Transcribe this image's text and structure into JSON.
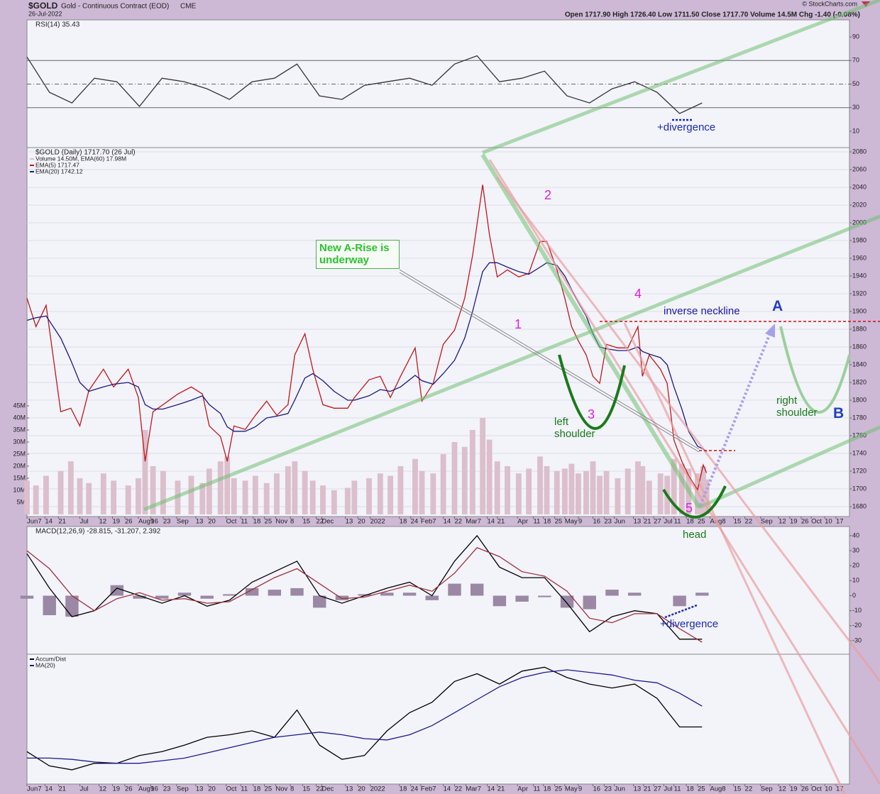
{
  "header": {
    "symbol": "$GOLD",
    "name": "Gold - Continuous Contract (EOD)",
    "exchange": "CME",
    "date": "26-Jul-2022",
    "quote": "Open 1717.90 High 1726.40 Low 1711.50 Close 1717.70 Volume 14.5M Chg -1.40 (-0.08%)",
    "copyright": "© StockCharts.com"
  },
  "chart_data": [
    {
      "type": "line",
      "title": "RSI(14) 35.43",
      "xlim": [
        0,
        73.1
      ],
      "ylim": [
        -3.9,
        104.5
      ],
      "yticks": [
        10,
        30,
        50,
        70,
        90
      ],
      "hlines": [
        30,
        50,
        70
      ],
      "x": [
        0,
        2,
        4,
        6,
        8,
        10,
        12,
        14,
        16,
        18,
        20,
        22,
        24,
        26,
        28,
        30,
        32,
        34,
        36,
        38,
        40,
        42,
        44,
        46,
        48,
        50,
        52,
        54,
        56,
        58,
        60
      ],
      "series": [
        {
          "color": "#333333",
          "values": [
            73,
            43,
            34,
            55,
            52,
            31,
            55,
            52,
            46,
            37,
            52,
            55,
            67,
            40,
            37,
            49,
            52,
            55,
            49,
            67,
            74,
            52,
            55,
            61,
            40,
            34,
            46,
            52,
            43,
            25,
            34
          ]
        }
      ],
      "annotations": [
        "+divergence"
      ]
    },
    {
      "type": "line",
      "title": "$GOLD (Daily) 1717.70 (26 Jul)",
      "xlim": [
        0,
        73.1
      ],
      "ylim": [
        1668.8,
        2084.8
      ],
      "grid": true,
      "yticks": [
        1680,
        1700,
        1720,
        1740,
        1760,
        1780,
        1800,
        1820,
        1840,
        1860,
        1880,
        1900,
        1920,
        1940,
        1960,
        1980,
        2000,
        2020,
        2040,
        2060,
        2080
      ],
      "y2lim": [
        -0.9,
        152.1
      ],
      "y2ticks": [
        {
          "value": 5,
          "label": "5M"
        },
        {
          "value": 10,
          "label": "10M"
        },
        {
          "value": 15,
          "label": "15M"
        },
        {
          "value": 20,
          "label": "20M"
        },
        {
          "value": 25,
          "label": "25M"
        },
        {
          "value": 30,
          "label": "30M"
        },
        {
          "value": 35,
          "label": "35M"
        },
        {
          "value": 40,
          "label": "40M"
        },
        {
          "value": 45,
          "label": "45M"
        }
      ],
      "xticks": [
        {
          "value": 0,
          "label": "Jun7"
        },
        {
          "value": 1.6,
          "label": "14"
        },
        {
          "value": 2.8,
          "label": "21"
        },
        {
          "value": 4.7,
          "label": "Jul"
        },
        {
          "value": 6.4,
          "label": "12"
        },
        {
          "value": 7.6,
          "label": "19"
        },
        {
          "value": 8.7,
          "label": "26"
        },
        {
          "value": 9.9,
          "label": "Aug9"
        },
        {
          "value": 11.0,
          "label": "16"
        },
        {
          "value": 12.1,
          "label": "23"
        },
        {
          "value": 13.3,
          "label": "Sep"
        },
        {
          "value": 15.0,
          "label": "13"
        },
        {
          "value": 16.1,
          "label": "20"
        },
        {
          "value": 17.7,
          "label": "Oct"
        },
        {
          "value": 19.0,
          "label": "11"
        },
        {
          "value": 20.1,
          "label": "18"
        },
        {
          "value": 21.1,
          "label": "25"
        },
        {
          "value": 22.1,
          "label": "Nov"
        },
        {
          "value": 23.4,
          "label": "8"
        },
        {
          "value": 24.5,
          "label": "15"
        },
        {
          "value": 25.7,
          "label": "22"
        },
        {
          "value": 26.2,
          "label": "Dec"
        },
        {
          "value": 28.3,
          "label": "13"
        },
        {
          "value": 29.4,
          "label": "20"
        },
        {
          "value": 30.5,
          "label": "2022"
        },
        {
          "value": 33.1,
          "label": "18"
        },
        {
          "value": 34.1,
          "label": "24"
        },
        {
          "value": 35.0,
          "label": "Feb7"
        },
        {
          "value": 37.0,
          "label": "14"
        },
        {
          "value": 38.0,
          "label": "22"
        },
        {
          "value": 39.0,
          "label": "Mar7"
        },
        {
          "value": 40.9,
          "label": "14"
        },
        {
          "value": 41.8,
          "label": "21"
        },
        {
          "value": 43.6,
          "label": "Apr"
        },
        {
          "value": 45.0,
          "label": "11"
        },
        {
          "value": 45.9,
          "label": "18"
        },
        {
          "value": 46.9,
          "label": "25"
        },
        {
          "value": 47.8,
          "label": "May"
        },
        {
          "value": 49.0,
          "label": "9"
        },
        {
          "value": 50.3,
          "label": "16"
        },
        {
          "value": 51.3,
          "label": "23"
        },
        {
          "value": 52.2,
          "label": "Jun"
        },
        {
          "value": 53.9,
          "label": "13"
        },
        {
          "value": 54.8,
          "label": "21"
        },
        {
          "value": 55.7,
          "label": "27"
        },
        {
          "value": 56.6,
          "label": "Jul"
        },
        {
          "value": 57.5,
          "label": "11"
        },
        {
          "value": 58.6,
          "label": "18"
        },
        {
          "value": 59.6,
          "label": "25"
        },
        {
          "value": 60.7,
          "label": "Aug8"
        },
        {
          "value": 62.8,
          "label": "15"
        },
        {
          "value": 63.8,
          "label": "22"
        },
        {
          "value": 65.2,
          "label": "Sep"
        },
        {
          "value": 66.8,
          "label": "12"
        },
        {
          "value": 67.8,
          "label": "19"
        },
        {
          "value": 68.8,
          "label": "26"
        },
        {
          "value": 69.7,
          "label": "Oct"
        },
        {
          "value": 70.9,
          "label": "10"
        },
        {
          "value": 71.9,
          "label": "17"
        }
      ],
      "x": [
        0,
        0.8,
        1.7,
        3.0,
        3.9,
        4.7,
        5.5,
        6.8,
        7.7,
        9.0,
        9.9,
        10.5,
        11.2,
        12.1,
        13.4,
        14.6,
        15.6,
        16.2,
        17.2,
        17.8,
        18.4,
        19.4,
        20.3,
        21.3,
        22.2,
        23.2,
        23.8,
        24.7,
        25.4,
        26.3,
        27.3,
        28.5,
        29.1,
        30.4,
        31.4,
        32.3,
        33.2,
        34.5,
        35.1,
        36.1,
        37.0,
        38.0,
        38.9,
        39.6,
        40.5,
        41.1,
        41.8,
        42.7,
        43.7,
        44.6,
        45.6,
        46.2,
        47.1,
        47.8,
        48.4,
        49.0,
        49.7,
        50.3,
        50.9,
        51.5,
        52.5,
        53.4,
        54.3,
        54.7,
        55.3,
        56.3,
        56.9,
        57.5,
        58.2,
        58.8,
        59.6,
        60.1,
        60.4
      ],
      "series": [
        {
          "type": "bar",
          "axis": "y2",
          "name": "Volume 14.50M, EMA(60) 17.98M",
          "color": "#dcbfcc",
          "values": [
            14,
            12,
            16,
            18,
            22,
            15,
            13,
            17,
            14,
            12,
            15,
            35,
            20,
            18,
            14,
            16,
            13,
            19,
            22,
            24,
            15,
            14,
            16,
            13,
            17,
            20,
            22,
            18,
            14,
            12,
            10,
            11,
            14,
            15,
            17,
            16,
            20,
            23,
            18,
            17,
            25,
            30,
            28,
            35,
            40,
            31,
            22,
            20,
            17,
            19,
            24,
            20,
            18,
            19,
            21,
            17,
            18,
            22,
            16,
            18,
            15,
            19,
            22,
            20,
            14,
            17,
            16,
            23,
            21,
            19,
            17,
            20,
            14.5
          ]
        },
        {
          "color": "#c01818",
          "values": [
            1915,
            1883,
            1907,
            1787,
            1791,
            1771,
            1811,
            1835,
            1815,
            1835,
            1803,
            1731,
            1787,
            1795,
            1807,
            1815,
            1807,
            1771,
            1759,
            1731,
            1771,
            1767,
            1783,
            1799,
            1783,
            1795,
            1851,
            1875,
            1835,
            1795,
            1791,
            1791,
            1803,
            1823,
            1827,
            1803,
            1827,
            1859,
            1799,
            1819,
            1863,
            1879,
            1915,
            1963,
            2043,
            1987,
            1939,
            1947,
            1939,
            1943,
            1979,
            1979,
            1947,
            1915,
            1883,
            1867,
            1851,
            1827,
            1819,
            1863,
            1859,
            1859,
            1883,
            1827,
            1851,
            1835,
            1819,
            1755,
            1731,
            1715,
            1699,
            1727,
            1718
          ]
        },
        {
          "name": "EMA(20) 1742.12",
          "color": "#1a1a80",
          "values": [
            1890,
            1893,
            1895,
            1870,
            1845,
            1820,
            1810,
            1815,
            1818,
            1820,
            1815,
            1795,
            1790,
            1790,
            1795,
            1800,
            1805,
            1795,
            1785,
            1770,
            1765,
            1765,
            1770,
            1780,
            1782,
            1785,
            1800,
            1825,
            1830,
            1822,
            1810,
            1800,
            1800,
            1805,
            1812,
            1810,
            1815,
            1828,
            1822,
            1818,
            1830,
            1845,
            1870,
            1900,
            1945,
            1955,
            1955,
            1950,
            1945,
            1942,
            1950,
            1955,
            1952,
            1940,
            1925,
            1910,
            1895,
            1875,
            1860,
            1858,
            1856,
            1856,
            1860,
            1855,
            1852,
            1848,
            1840,
            1815,
            1790,
            1765,
            1748,
            1745,
            1742
          ]
        }
      ],
      "legend_extra": {
        "text": "EMA(5) 1717.47",
        "color": "#c01818"
      },
      "annotations": [
        "1",
        "2",
        "3",
        "4",
        "5",
        "New A-Rise is underway",
        "inverse neckline",
        "A",
        "B",
        "right shoulder",
        "left shoulder",
        "head"
      ]
    },
    {
      "type": "line",
      "title": "MACD(12,26,9) -28.815, -31.207, 2.392",
      "xlim": [
        0,
        73.1
      ],
      "ylim": [
        -39.0,
        46.1
      ],
      "yticks": [
        -30,
        -20,
        -10,
        0,
        10,
        20,
        30,
        40
      ],
      "x": [
        0,
        2,
        4,
        6,
        8,
        10,
        12,
        14,
        16,
        18,
        20,
        22,
        24,
        26,
        28,
        30,
        32,
        34,
        36,
        38,
        40,
        42,
        44,
        46,
        48,
        50,
        52,
        54,
        56,
        58,
        60
      ],
      "series": [
        {
          "type": "bar",
          "color": "#9a88a4",
          "values": [
            -2,
            -13,
            -14,
            0,
            7,
            -2,
            -2,
            2,
            -2,
            1,
            5,
            4,
            5,
            -8,
            -3,
            1,
            2,
            2,
            -3,
            8,
            8,
            -7,
            -4,
            -1,
            -8,
            -9,
            4,
            2,
            0,
            -7,
            2
          ]
        },
        {
          "color": "#000000",
          "values": [
            28,
            5,
            -14,
            -10,
            5,
            0,
            -5,
            0,
            -7,
            -3,
            9,
            16,
            23,
            0,
            -5,
            0,
            5,
            9,
            0,
            23,
            40,
            19,
            12,
            12,
            -5,
            -24,
            -14,
            -10,
            -12,
            -29,
            -29
          ]
        },
        {
          "color": "#a0303a",
          "values": [
            30,
            18,
            0,
            -10,
            -2,
            2,
            -3,
            -2,
            -5,
            -4,
            4,
            12,
            18,
            8,
            -2,
            -1,
            3,
            7,
            3,
            15,
            32,
            26,
            16,
            13,
            3,
            -15,
            -18,
            -12,
            -12,
            -22,
            -31
          ]
        }
      ],
      "annotations": [
        "+divergence"
      ]
    },
    {
      "type": "line",
      "xlim": [
        0,
        73.1
      ],
      "ylim": [
        0,
        100
      ],
      "x": [
        0,
        2,
        4,
        6,
        8,
        10,
        12,
        14,
        16,
        18,
        20,
        22,
        24,
        26,
        28,
        30,
        32,
        34,
        36,
        38,
        40,
        42,
        44,
        46,
        48,
        50,
        52,
        54,
        56,
        58,
        60
      ],
      "series": [
        {
          "name": "Accum/Dist",
          "color": "#000000",
          "values": [
            25,
            14,
            11,
            16,
            16,
            22,
            25,
            30,
            36,
            38,
            41,
            36,
            57,
            30,
            19,
            22,
            41,
            55,
            63,
            79,
            85,
            77,
            87,
            90,
            82,
            77,
            74,
            77,
            66,
            44,
            44
          ]
        },
        {
          "name": "MA(20)",
          "color": "#1a1a90",
          "values": [
            20,
            20,
            19,
            17,
            16,
            16,
            18,
            20,
            24,
            28,
            32,
            36,
            38,
            40,
            38,
            35,
            34,
            38,
            45,
            55,
            65,
            75,
            82,
            86,
            88,
            86,
            84,
            80,
            78,
            70,
            60
          ]
        }
      ]
    }
  ]
}
